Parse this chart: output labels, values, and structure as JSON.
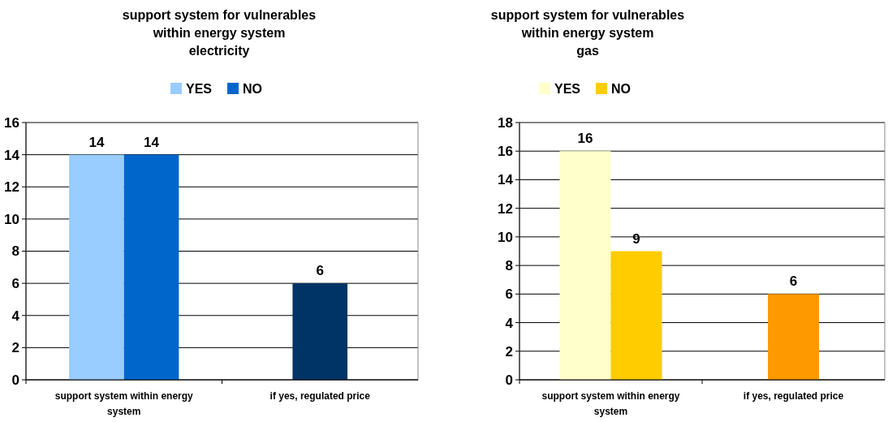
{
  "chart_data": [
    {
      "type": "bar",
      "title": "support system for vulnerables within energy system",
      "subtitle": "electricity",
      "categories": [
        "support system within energy system",
        "if yes, regulated price"
      ],
      "series": [
        {
          "name": "YES",
          "color": "#99ccff",
          "values": [
            14,
            null
          ]
        },
        {
          "name": "NO",
          "color": "#0066cc",
          "values": [
            14,
            null
          ]
        },
        {
          "color": "#003366",
          "values": [
            null,
            6
          ]
        }
      ],
      "ylim": [
        0,
        16
      ],
      "yticks": [
        0,
        2,
        4,
        6,
        8,
        10,
        12,
        14,
        16
      ],
      "grid": "y",
      "legend": "top",
      "data_labels": true
    },
    {
      "type": "bar",
      "title": "support system for vulnerables within energy system",
      "subtitle": "gas",
      "categories": [
        "support system within energy system",
        "if yes, regulated price"
      ],
      "series": [
        {
          "name": "YES",
          "color": "#ffffcc",
          "values": [
            16,
            null
          ]
        },
        {
          "name": "NO",
          "color": "#ffcc00",
          "values": [
            9,
            null
          ]
        },
        {
          "color": "#ff9900",
          "values": [
            null,
            6
          ]
        }
      ],
      "ylim": [
        0,
        18
      ],
      "yticks": [
        0,
        2,
        4,
        6,
        8,
        10,
        12,
        14,
        16,
        18
      ],
      "grid": "y",
      "legend": "top",
      "data_labels": true
    }
  ]
}
